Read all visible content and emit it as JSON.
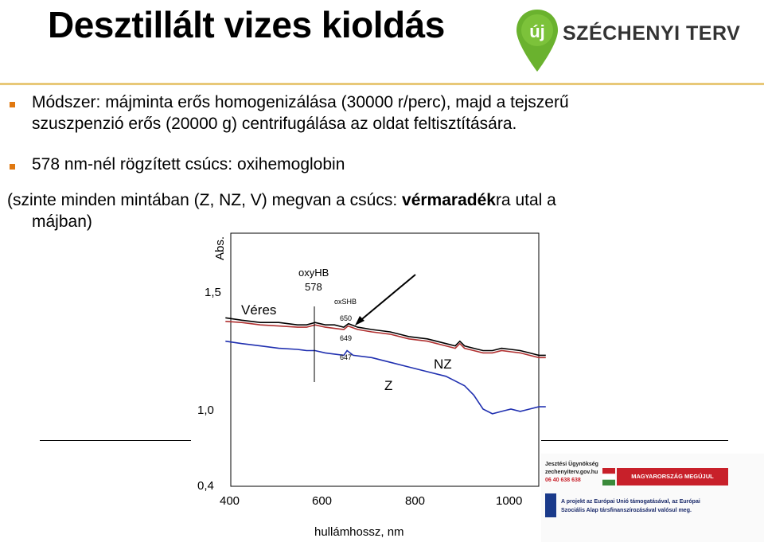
{
  "title": "Desztillált vizes kioldás",
  "logo": {
    "mark": "új",
    "text": "SZÉCHENYI TERV"
  },
  "bullets": [
    {
      "line1": "Módszer: májminta erős homogenizálása (30000 r/perc), majd a tejszerű",
      "line2": "szuszpenzió erős (20000 g) centrifugálása az oldat feltisztítására."
    },
    {
      "line1": "578 nm-nél rögzített csúcs: oxihemoglobin"
    }
  ],
  "paragraph": {
    "line1_a": "(szinte minden mintában (Z, NZ, V) megvan a csúcs: ",
    "line1_bold": "vérmaradék",
    "line1_b": "ra utal a",
    "line2": "májban)"
  },
  "chart_data": {
    "type": "line",
    "xlabel": "hullámhossz, nm",
    "ylabel": "Abs.",
    "x_ticks": [
      "400",
      "600",
      "800",
      "1000"
    ],
    "y_ticks": [
      "1,5",
      "1,0",
      "0,4"
    ],
    "xlim": [
      380,
      1080
    ],
    "annotations": [
      "oxyHB",
      "578",
      "oxSHB",
      "650",
      "649",
      "647",
      "Véres",
      "NZ",
      "Z"
    ],
    "series": [
      {
        "name": "Véres",
        "color": "#000000",
        "x": [
          385,
          420,
          460,
          500,
          540,
          560,
          578,
          600,
          620,
          640,
          650,
          670,
          700,
          740,
          780,
          820,
          860,
          880,
          890,
          900,
          920,
          940,
          960,
          980,
          1000,
          1020,
          1040,
          1060,
          1075
        ],
        "y": [
          1.39,
          1.38,
          1.37,
          1.37,
          1.36,
          1.36,
          1.37,
          1.36,
          1.36,
          1.35,
          1.365,
          1.35,
          1.34,
          1.33,
          1.31,
          1.3,
          1.28,
          1.27,
          1.29,
          1.27,
          1.26,
          1.25,
          1.25,
          1.26,
          1.255,
          1.25,
          1.24,
          1.23,
          1.23
        ]
      },
      {
        "name": "NZ",
        "color": "#b03030",
        "x": [
          385,
          420,
          460,
          500,
          540,
          560,
          578,
          600,
          620,
          640,
          649,
          670,
          700,
          740,
          780,
          820,
          860,
          880,
          890,
          900,
          920,
          940,
          960,
          980,
          1000,
          1020,
          1040,
          1060,
          1075
        ],
        "y": [
          1.375,
          1.37,
          1.36,
          1.355,
          1.35,
          1.35,
          1.36,
          1.35,
          1.345,
          1.34,
          1.355,
          1.34,
          1.33,
          1.32,
          1.3,
          1.29,
          1.27,
          1.26,
          1.28,
          1.26,
          1.25,
          1.24,
          1.24,
          1.25,
          1.245,
          1.24,
          1.23,
          1.22,
          1.22
        ]
      },
      {
        "name": "Z",
        "color": "#2030b0",
        "x": [
          385,
          420,
          460,
          500,
          540,
          560,
          578,
          600,
          620,
          640,
          647,
          660,
          700,
          740,
          780,
          820,
          860,
          880,
          900,
          920,
          940,
          960,
          980,
          1000,
          1020,
          1040,
          1060,
          1075
        ],
        "y": [
          1.29,
          1.28,
          1.27,
          1.26,
          1.255,
          1.25,
          1.25,
          1.24,
          1.235,
          1.23,
          1.25,
          1.23,
          1.22,
          1.2,
          1.18,
          1.16,
          1.14,
          1.12,
          1.1,
          1.06,
          1.0,
          0.98,
          0.99,
          1.0,
          0.99,
          1.0,
          1.01,
          1.01
        ]
      }
    ]
  },
  "footer": {
    "agency_line1": "Jesztési Ügynökség",
    "agency_line2": "zechenyiterv.gov.hu",
    "agency_line3": "06 40 638 638",
    "hu_label": "MAGYARORSZÁG MEGÚJUL",
    "eu_line1": "A projekt az Európai Unió támogatásával, az Európai",
    "eu_line2": "Szociális Alap társfinanszírozásával valósul meg."
  }
}
